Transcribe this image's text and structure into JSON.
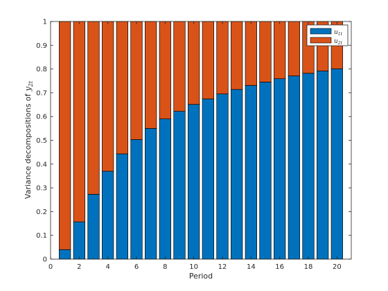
{
  "chart_data": {
    "type": "bar",
    "stacked": true,
    "title": "",
    "xlabel": "Period",
    "ylabel": "Variance decompositions of y_{2t}",
    "ylabel_text": "Variance decompositions of",
    "ylabel_math": "y",
    "ylabel_sub": "2t",
    "xlim": [
      0,
      21
    ],
    "ylim": [
      0,
      1
    ],
    "x_ticks": [
      0,
      2,
      4,
      6,
      8,
      10,
      12,
      14,
      16,
      18,
      20
    ],
    "y_ticks": [
      0,
      0.1,
      0.2,
      0.3,
      0.4,
      0.5,
      0.6,
      0.7,
      0.8,
      0.9,
      1
    ],
    "y_tick_labels": [
      "0",
      "0.1",
      "0.2",
      "0.3",
      "0.4",
      "0.5",
      "0.6",
      "0.7",
      "0.8",
      "0.9",
      "1"
    ],
    "categories": [
      1,
      2,
      3,
      4,
      5,
      6,
      7,
      8,
      9,
      10,
      11,
      12,
      13,
      14,
      15,
      16,
      17,
      18,
      19,
      20
    ],
    "legend_position": "top-right",
    "grid": false,
    "series": [
      {
        "name": "u_{1t}",
        "label_math": "u",
        "label_sub": "1t",
        "color": "#0072BD",
        "values": [
          0.04,
          0.157,
          0.273,
          0.37,
          0.443,
          0.503,
          0.55,
          0.59,
          0.622,
          0.651,
          0.674,
          0.695,
          0.714,
          0.731,
          0.745,
          0.759,
          0.771,
          0.782,
          0.792,
          0.801
        ]
      },
      {
        "name": "u_{2t}",
        "label_math": "u",
        "label_sub": "2t",
        "color": "#D95319",
        "values": [
          0.96,
          0.843,
          0.727,
          0.63,
          0.557,
          0.497,
          0.45,
          0.41,
          0.378,
          0.349,
          0.326,
          0.305,
          0.286,
          0.269,
          0.255,
          0.241,
          0.229,
          0.218,
          0.208,
          0.199
        ]
      }
    ]
  }
}
